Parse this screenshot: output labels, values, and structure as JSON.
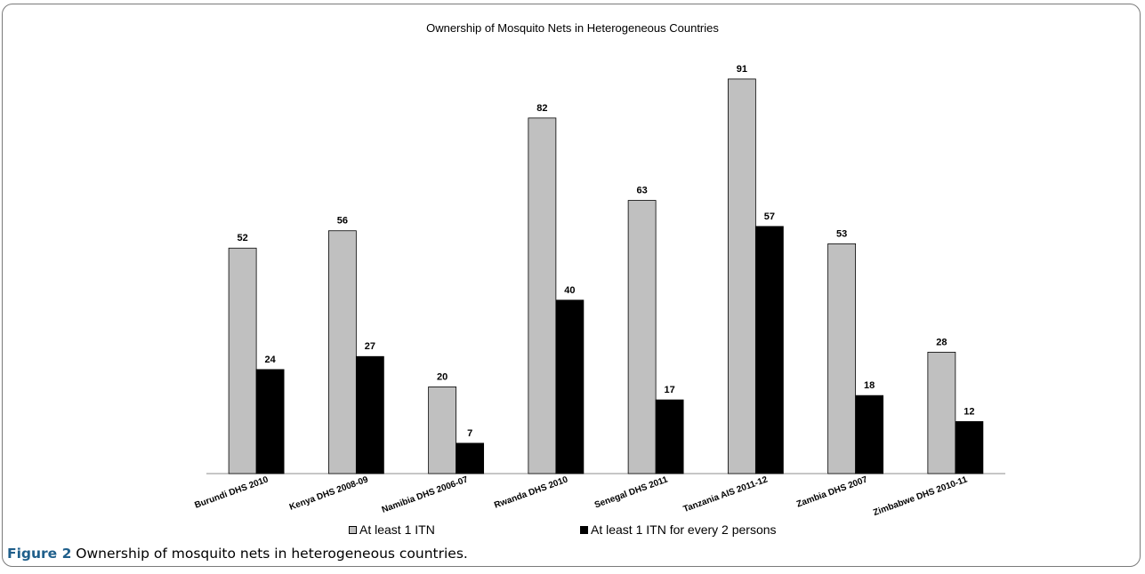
{
  "chart_data": {
    "type": "bar",
    "title": "Ownership of Mosquito Nets in Heterogeneous Countries",
    "categories": [
      "Burundi DHS 2010",
      "Kenya DHS 2008-09",
      "Namibia DHS 2006-07",
      "Rwanda DHS 2010",
      "Senegal DHS 2011",
      "Tanzania AIS 2011-12",
      "Zambia DHS 2007",
      "Zimbabwe DHS 2010-11"
    ],
    "series": [
      {
        "name": "At least 1 ITN",
        "values": [
          52,
          56,
          20,
          82,
          63,
          91,
          53,
          28
        ],
        "color": "#c0c0c0"
      },
      {
        "name": "At least 1 ITN for every 2 persons",
        "values": [
          24,
          27,
          7,
          40,
          17,
          57,
          18,
          12
        ],
        "color": "#000000"
      }
    ],
    "ylim": [
      0,
      100
    ],
    "grid": false,
    "legend_position": "bottom",
    "data_labels": true
  },
  "caption": {
    "label": "Figure 2",
    "text": " Ownership of mosquito nets in heterogeneous countries."
  }
}
